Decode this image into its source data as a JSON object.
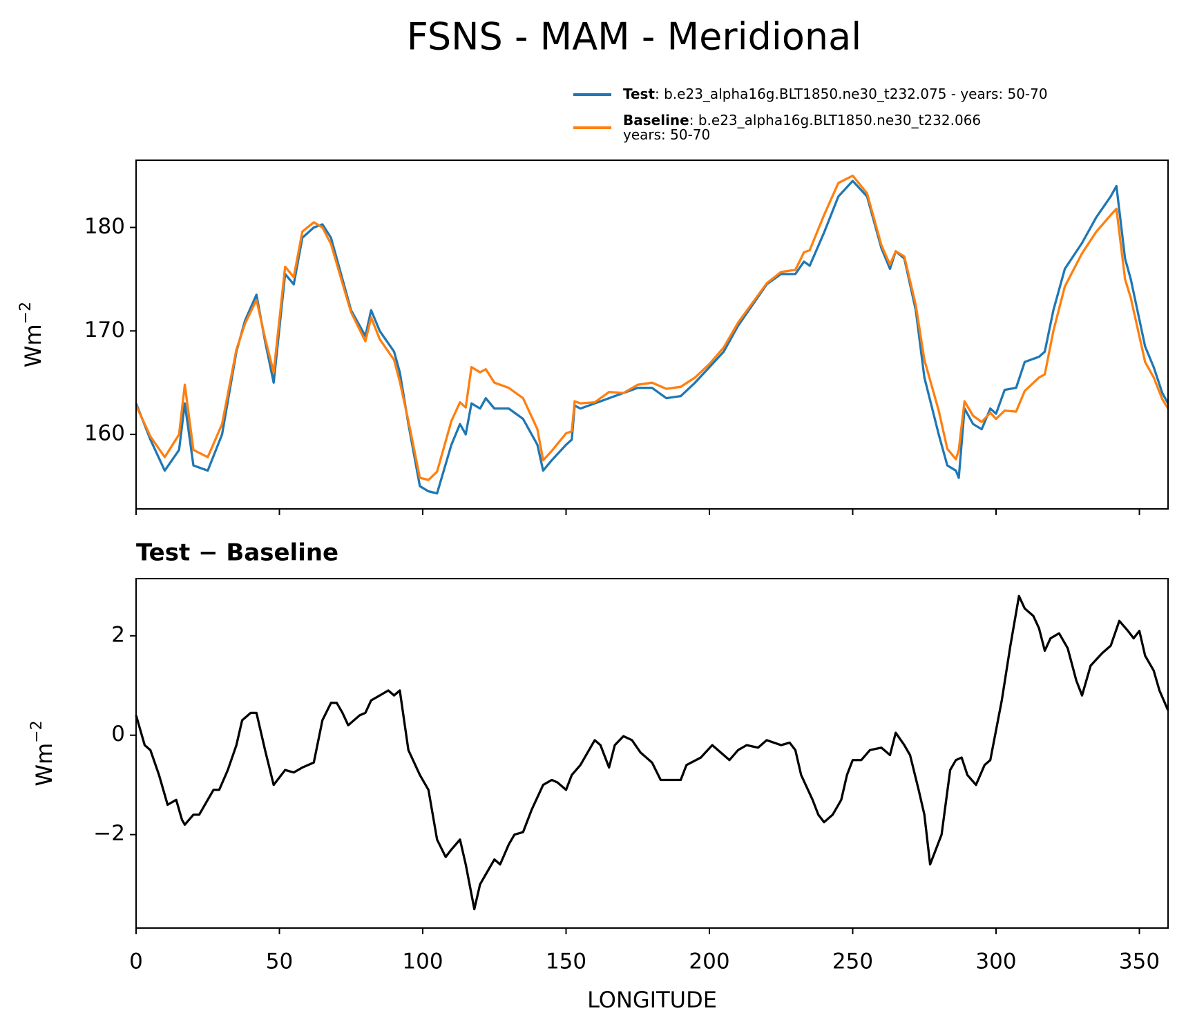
{
  "chart_data": [
    {
      "type": "line",
      "title": "FSNS - MAM - Meridional",
      "title_loc": "center",
      "title_bold": false,
      "ylabel": "Wm",
      "ylabel_exp": "−2",
      "x": [
        0,
        5,
        10,
        15,
        17,
        20,
        25,
        30,
        35,
        38,
        42,
        45,
        48,
        52,
        55,
        58,
        62,
        65,
        68,
        72,
        75,
        80,
        82,
        85,
        90,
        92,
        95,
        99,
        102,
        105,
        110,
        113,
        115,
        117,
        120,
        122,
        125,
        130,
        135,
        140,
        142,
        145,
        150,
        152,
        153,
        155,
        160,
        165,
        170,
        175,
        180,
        185,
        190,
        195,
        200,
        205,
        210,
        215,
        220,
        225,
        230,
        233,
        235,
        240,
        245,
        250,
        255,
        260,
        263,
        265,
        268,
        272,
        275,
        280,
        283,
        286,
        287,
        289,
        292,
        295,
        298,
        300,
        303,
        307,
        310,
        315,
        317,
        320,
        324,
        330,
        335,
        340,
        342,
        345,
        347,
        352,
        355,
        358,
        360
      ],
      "series": [
        {
          "name": "Test",
          "legend_text": [
            ": b.e23_alpha16g.BLT1850.ne30_t232.075 - years: 50-70"
          ],
          "color": "#1f77b4",
          "values": [
            163,
            159.5,
            156.5,
            158.5,
            163,
            157,
            156.5,
            160,
            168,
            171,
            173.5,
            169,
            165,
            175.5,
            174.5,
            179,
            180,
            180.3,
            179,
            175,
            172,
            169.5,
            172,
            170,
            168,
            166,
            161,
            155,
            154.5,
            154.3,
            159,
            161,
            160,
            163,
            162.5,
            163.5,
            162.5,
            162.5,
            161.5,
            159,
            156.5,
            157.5,
            159,
            159.5,
            162.8,
            162.5,
            163,
            163.5,
            164,
            164.5,
            164.5,
            163.5,
            163.7,
            165,
            166.5,
            168,
            170.5,
            172.5,
            174.5,
            175.5,
            175.5,
            176.7,
            176.3,
            179.5,
            183,
            184.5,
            183,
            178,
            176,
            177.7,
            177,
            172,
            165.5,
            160,
            157,
            156.5,
            155.8,
            162.5,
            161,
            160.5,
            162.5,
            162,
            164.3,
            164.5,
            167,
            167.5,
            168,
            172,
            176,
            178.5,
            181,
            183,
            184,
            177,
            175,
            168.5,
            166.5,
            164,
            163
          ]
        },
        {
          "name": "Baseline",
          "legend_text": [
            ": b.e23_alpha16g.BLT1850.ne30_t232.066",
            "years: 50-70"
          ],
          "color": "#ff7f0e",
          "values": [
            162.8,
            159.8,
            157.8,
            160,
            164.8,
            158.5,
            157.8,
            161,
            168.2,
            170.7,
            173,
            169.3,
            166,
            176.2,
            175.2,
            179.6,
            180.5,
            180,
            178.4,
            174.6,
            171.8,
            169,
            171.3,
            169.2,
            167.2,
            165.1,
            161.3,
            155.8,
            155.6,
            156.4,
            161.3,
            163.1,
            162.6,
            166.5,
            166,
            166.3,
            165,
            164.5,
            163.5,
            160.5,
            157.5,
            158.4,
            160.1,
            160.3,
            163.2,
            163,
            163.1,
            164.1,
            164,
            164.8,
            165,
            164.4,
            164.6,
            165.5,
            166.8,
            168.4,
            170.8,
            172.7,
            174.6,
            175.7,
            175.9,
            177.6,
            177.8,
            181.2,
            184.3,
            185,
            183.3,
            178.3,
            176.4,
            177.7,
            177.2,
            172.5,
            167.2,
            162.3,
            158.6,
            157.6,
            158.5,
            163.2,
            161.8,
            161.2,
            162.1,
            161.5,
            162.3,
            162.2,
            164.2,
            165.5,
            165.8,
            170,
            174.3,
            177.5,
            179.6,
            181.2,
            181.8,
            175,
            173.2,
            167,
            165.5,
            163.4,
            162.5
          ]
        }
      ],
      "xlim": [
        0,
        360
      ],
      "ylim": [
        152.8,
        186.5
      ],
      "xticks": [
        0,
        50,
        100,
        150,
        200,
        250,
        300,
        350
      ],
      "show_xtick_labels": false,
      "yticks": [
        160,
        170,
        180
      ],
      "grid": false,
      "legend": "upper right"
    },
    {
      "type": "line",
      "title": "Test − Baseline",
      "title_loc": "left",
      "title_bold": true,
      "ylabel": "Wm",
      "ylabel_exp": "−2",
      "xlabel": "LONGITUDE",
      "x": [
        0,
        2,
        3,
        5,
        8,
        10,
        11,
        14,
        16,
        17,
        20,
        22,
        25,
        27,
        29,
        32,
        35,
        37,
        40,
        42,
        45,
        48,
        52,
        55,
        58,
        62,
        65,
        68,
        70,
        72,
        74,
        78,
        80,
        82,
        85,
        88,
        90,
        92,
        95,
        99,
        102,
        105,
        108,
        110,
        113,
        115,
        118,
        120,
        122,
        125,
        127,
        130,
        132,
        135,
        138,
        142,
        145,
        147,
        150,
        152,
        155,
        158,
        160,
        162,
        165,
        167,
        170,
        173,
        176,
        180,
        183,
        187,
        190,
        192,
        197,
        201,
        205,
        207,
        210,
        213,
        217,
        220,
        225,
        228,
        230,
        232,
        236,
        238,
        240,
        243,
        246,
        248,
        250,
        253,
        256,
        260,
        263,
        265,
        268,
        270,
        273,
        275,
        277,
        279,
        281,
        284,
        286,
        288,
        290,
        293,
        296,
        298,
        302,
        305,
        308,
        310,
        313,
        315,
        317,
        319,
        322,
        325,
        328,
        330,
        333,
        337,
        340,
        343,
        346,
        348,
        350,
        352,
        355,
        357,
        360
      ],
      "series": [
        {
          "name": "Test − Baseline",
          "color": "#000000",
          "values": [
            0.4,
            0,
            -0.2,
            -0.3,
            -0.8,
            -1.2,
            -1.4,
            -1.3,
            -1.7,
            -1.8,
            -1.6,
            -1.6,
            -1.3,
            -1.1,
            -1.1,
            -0.7,
            -0.2,
            0.3,
            0.45,
            0.45,
            -0.3,
            -1.0,
            -0.7,
            -0.75,
            -0.65,
            -0.55,
            0.3,
            0.65,
            0.65,
            0.45,
            0.2,
            0.4,
            0.45,
            0.7,
            0.8,
            0.9,
            0.8,
            0.9,
            -0.3,
            -0.8,
            -1.1,
            -2.1,
            -2.45,
            -2.3,
            -2.1,
            -2.6,
            -3.5,
            -3.0,
            -2.8,
            -2.5,
            -2.6,
            -2.2,
            -2.0,
            -1.95,
            -1.5,
            -1.0,
            -0.9,
            -0.95,
            -1.1,
            -0.8,
            -0.6,
            -0.3,
            -0.1,
            -0.2,
            -0.65,
            -0.2,
            -0.02,
            -0.1,
            -0.35,
            -0.55,
            -0.9,
            -0.9,
            -0.9,
            -0.6,
            -0.45,
            -0.2,
            -0.4,
            -0.5,
            -0.3,
            -0.2,
            -0.25,
            -0.1,
            -0.2,
            -0.15,
            -0.3,
            -0.8,
            -1.3,
            -1.6,
            -1.75,
            -1.6,
            -1.3,
            -0.8,
            -0.5,
            -0.5,
            -0.3,
            -0.25,
            -0.4,
            0.05,
            -0.2,
            -0.4,
            -1.1,
            -1.6,
            -2.6,
            -2.3,
            -2.0,
            -0.7,
            -0.5,
            -0.45,
            -0.8,
            -1.0,
            -0.6,
            -0.5,
            0.7,
            1.8,
            2.8,
            2.55,
            2.4,
            2.15,
            1.7,
            1.95,
            2.05,
            1.75,
            1.1,
            0.8,
            1.4,
            1.65,
            1.8,
            2.3,
            2.1,
            1.95,
            2.1,
            1.6,
            1.3,
            0.9,
            0.5
          ]
        }
      ],
      "xlim": [
        0,
        360
      ],
      "ylim": [
        -3.88,
        3.15
      ],
      "xticks": [
        0,
        50,
        100,
        150,
        200,
        250,
        300,
        350
      ],
      "show_xtick_labels": true,
      "yticks": [
        {
          "value": -2,
          "label": "−2"
        },
        0,
        2
      ],
      "grid": false
    }
  ]
}
